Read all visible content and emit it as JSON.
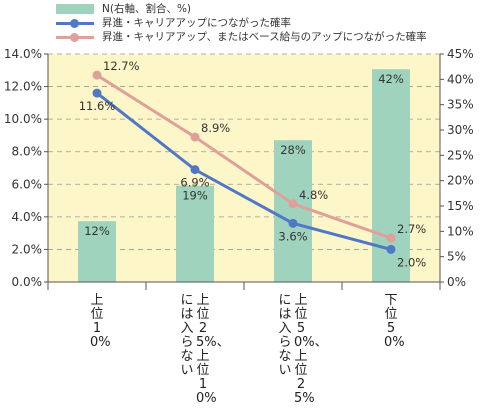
{
  "colors": {
    "plot_bg": "#fdf6c8",
    "bar": "#9fd3bd",
    "series1": "#4f79c4",
    "series2": "#e0a09a",
    "grid": "#999999"
  },
  "chart_data": {
    "type": "bar+line",
    "categories": [
      "上位10%",
      "上位25%、上位10%には入らない",
      "上位50%、上位25%には入らない",
      "下位50%"
    ],
    "category_columns": [
      [
        "上位10%"
      ],
      [
        "上位25%、上位10%",
        "には入らない"
      ],
      [
        "上位50%、上位25%",
        "には入らない"
      ],
      [
        "下位50%"
      ]
    ],
    "bars": {
      "name": "N(右軸、割合、%)",
      "axis": "right",
      "values": [
        12,
        19,
        28,
        42
      ],
      "labels": [
        "12%",
        "19%",
        "28%",
        "42%"
      ]
    },
    "series": [
      {
        "name": "昇進・キャリアアップにつながった確率",
        "axis": "left",
        "values": [
          11.6,
          6.9,
          3.6,
          2.0
        ],
        "labels": [
          "11.6%",
          "6.9%",
          "3.6%",
          "2.0%"
        ]
      },
      {
        "name": "昇進・キャリアアップ、またはベース給与のアップにつながった確率",
        "axis": "left",
        "values": [
          12.7,
          8.9,
          4.8,
          2.7
        ],
        "labels": [
          "12.7%",
          "8.9%",
          "4.8%",
          "2.7%"
        ]
      }
    ],
    "y_left": {
      "ylim": [
        0,
        14
      ],
      "ticks": [
        "0.0%",
        "2.0%",
        "4.0%",
        "6.0%",
        "8.0%",
        "10.0%",
        "12.0%",
        "14.0%"
      ]
    },
    "y_right": {
      "ylim": [
        0,
        45
      ],
      "ticks": [
        "0%",
        "5%",
        "10%",
        "15%",
        "20%",
        "25%",
        "30%",
        "35%",
        "40%",
        "45%"
      ]
    },
    "grid": true,
    "legend": "top-left"
  }
}
